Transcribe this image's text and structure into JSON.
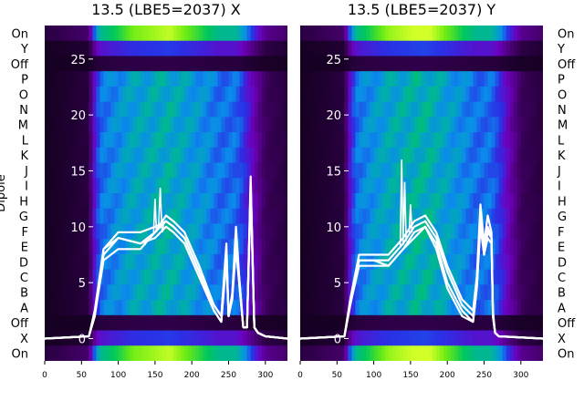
{
  "chart_data": [
    {
      "type": "heatmap",
      "title": "13.5 (LBE5=2037) X",
      "ylabel": "Dipole",
      "xlim": [
        0,
        330
      ],
      "x_ticks": [
        0,
        50,
        100,
        150,
        200,
        250,
        300
      ],
      "overlay_ylim": [
        -2,
        28
      ],
      "overlay_ticks": [
        0,
        5,
        10,
        15,
        20,
        25
      ],
      "rows_top_to_bottom": [
        "On",
        "Y",
        "Off",
        "P",
        "O",
        "N",
        "M",
        "L",
        "K",
        "J",
        "I",
        "H",
        "G",
        "F",
        "E",
        "D",
        "C",
        "B",
        "A",
        "Off",
        "X",
        "On"
      ],
      "heat_profile": {
        "x": [
          0,
          60,
          68,
          75,
          90,
          120,
          170,
          210,
          240,
          260,
          270,
          285,
          300,
          330
        ],
        "intensity": [
          0.0,
          0.05,
          0.35,
          0.55,
          0.6,
          0.7,
          0.75,
          0.65,
          0.55,
          0.55,
          0.45,
          0.25,
          0.1,
          0.05
        ]
      },
      "series": [
        {
          "x": [
            0,
            60,
            68,
            80,
            100,
            130,
            150,
            165,
            175,
            190,
            210,
            230,
            240,
            247,
            250,
            255,
            260,
            265,
            270,
            275,
            280,
            285,
            290,
            300,
            330
          ],
          "y": [
            0,
            0.2,
            2,
            8,
            9,
            8.5,
            9.5,
            11,
            10.5,
            9.5,
            6.5,
            3,
            2,
            8,
            2,
            4,
            9,
            5,
            1,
            1,
            14,
            1,
            0.5,
            0.2,
            0
          ]
        },
        {
          "x": [
            0,
            60,
            68,
            80,
            100,
            130,
            150,
            165,
            175,
            190,
            210,
            230,
            240,
            247,
            250,
            255,
            260,
            265,
            270,
            275,
            280,
            285,
            290,
            300,
            330
          ],
          "y": [
            0,
            0.2,
            2,
            7,
            8,
            8,
            9.5,
            10.5,
            10,
            9,
            6,
            2.5,
            1.5,
            7,
            2,
            3.5,
            8,
            4.5,
            1,
            1,
            13,
            1,
            0.5,
            0.2,
            0
          ]
        },
        {
          "x": [
            0,
            60,
            68,
            80,
            100,
            130,
            150,
            165,
            175,
            190,
            210,
            230,
            240,
            247,
            250,
            255,
            260,
            265,
            270,
            275,
            280,
            285,
            290,
            300,
            330
          ],
          "y": [
            0,
            0.2,
            2.5,
            8,
            9.5,
            9.5,
            10,
            10.5,
            10,
            9,
            6,
            3,
            2,
            8.5,
            2,
            4,
            10,
            5,
            1,
            1,
            14.5,
            1,
            0.5,
            0.2,
            0
          ]
        },
        {
          "x": [
            0,
            60,
            68,
            80,
            100,
            130,
            150,
            165,
            175,
            190,
            210,
            230,
            240,
            247,
            250,
            255,
            260,
            265,
            270,
            275,
            280,
            285,
            290,
            300,
            330
          ],
          "y": [
            0,
            0.2,
            2,
            7.5,
            9,
            8.5,
            9,
            10,
            9.5,
            8.5,
            5.5,
            2.5,
            1.5,
            7.5,
            2,
            3.5,
            9,
            4.5,
            1,
            1,
            13.5,
            1,
            0.5,
            0.2,
            0
          ]
        }
      ],
      "spikes": [
        {
          "x": 137,
          "y": 8.5
        },
        {
          "x": 150,
          "y": 12.5
        },
        {
          "x": 157,
          "y": 13.5
        },
        {
          "x": 160,
          "y": 9.5
        }
      ]
    },
    {
      "type": "heatmap",
      "title": "13.5 (LBE5=2037) Y",
      "xlim": [
        0,
        330
      ],
      "x_ticks": [
        0,
        50,
        100,
        150,
        200,
        250,
        300
      ],
      "overlay_ylim": [
        -2,
        28
      ],
      "overlay_ticks": [
        0,
        5,
        10,
        15,
        20,
        25
      ],
      "rows_top_to_bottom": [
        "On",
        "Y",
        "Off",
        "P",
        "O",
        "N",
        "M",
        "L",
        "K",
        "J",
        "I",
        "H",
        "G",
        "F",
        "E",
        "D",
        "C",
        "B",
        "A",
        "Off",
        "X",
        "On"
      ],
      "heat_profile": {
        "x": [
          0,
          60,
          68,
          75,
          90,
          120,
          170,
          210,
          240,
          260,
          270,
          285,
          300,
          330
        ],
        "intensity": [
          0.0,
          0.05,
          0.35,
          0.55,
          0.62,
          0.72,
          0.78,
          0.66,
          0.55,
          0.55,
          0.45,
          0.25,
          0.1,
          0.05
        ]
      },
      "series": [
        {
          "x": [
            0,
            60,
            68,
            80,
            100,
            120,
            140,
            155,
            170,
            185,
            200,
            220,
            235,
            240,
            245,
            250,
            255,
            260,
            262,
            265,
            270,
            330
          ],
          "y": [
            0,
            0.2,
            3,
            7,
            7,
            7,
            8.5,
            10,
            10.5,
            9,
            6,
            3,
            2,
            5,
            11,
            8,
            10,
            9,
            2,
            0.5,
            0.2,
            0
          ]
        },
        {
          "x": [
            0,
            60,
            68,
            80,
            100,
            120,
            140,
            155,
            170,
            185,
            200,
            220,
            235,
            240,
            245,
            250,
            255,
            260,
            262,
            265,
            270,
            330
          ],
          "y": [
            0,
            0.2,
            3,
            6.5,
            6.5,
            6.5,
            8,
            9.5,
            10,
            8.5,
            5,
            2.5,
            1.5,
            4.5,
            10,
            7.5,
            9,
            8.5,
            2,
            0.5,
            0.2,
            0
          ]
        },
        {
          "x": [
            0,
            60,
            68,
            80,
            100,
            120,
            140,
            155,
            170,
            185,
            200,
            220,
            235,
            240,
            245,
            250,
            255,
            260,
            262,
            265,
            270,
            330
          ],
          "y": [
            0,
            0.2,
            3.5,
            7.5,
            7.5,
            7.5,
            9,
            10.5,
            11,
            9.5,
            6.5,
            3.5,
            2.5,
            5.5,
            12,
            8.5,
            11,
            9.5,
            2.5,
            0.5,
            0.2,
            0
          ]
        },
        {
          "x": [
            0,
            60,
            68,
            80,
            100,
            120,
            140,
            155,
            170,
            185,
            200,
            220,
            235,
            240,
            245,
            250,
            255,
            260,
            262,
            265,
            270,
            330
          ],
          "y": [
            0,
            0.2,
            3,
            7,
            7,
            6.5,
            8,
            9,
            10,
            8,
            4.5,
            2,
            1.5,
            4.5,
            10.5,
            7.5,
            9.5,
            9,
            2,
            0.5,
            0.2,
            0
          ]
        }
      ],
      "spikes": [
        {
          "x": 138,
          "y": 16
        },
        {
          "x": 142,
          "y": 14
        },
        {
          "x": 150,
          "y": 12
        }
      ]
    }
  ]
}
